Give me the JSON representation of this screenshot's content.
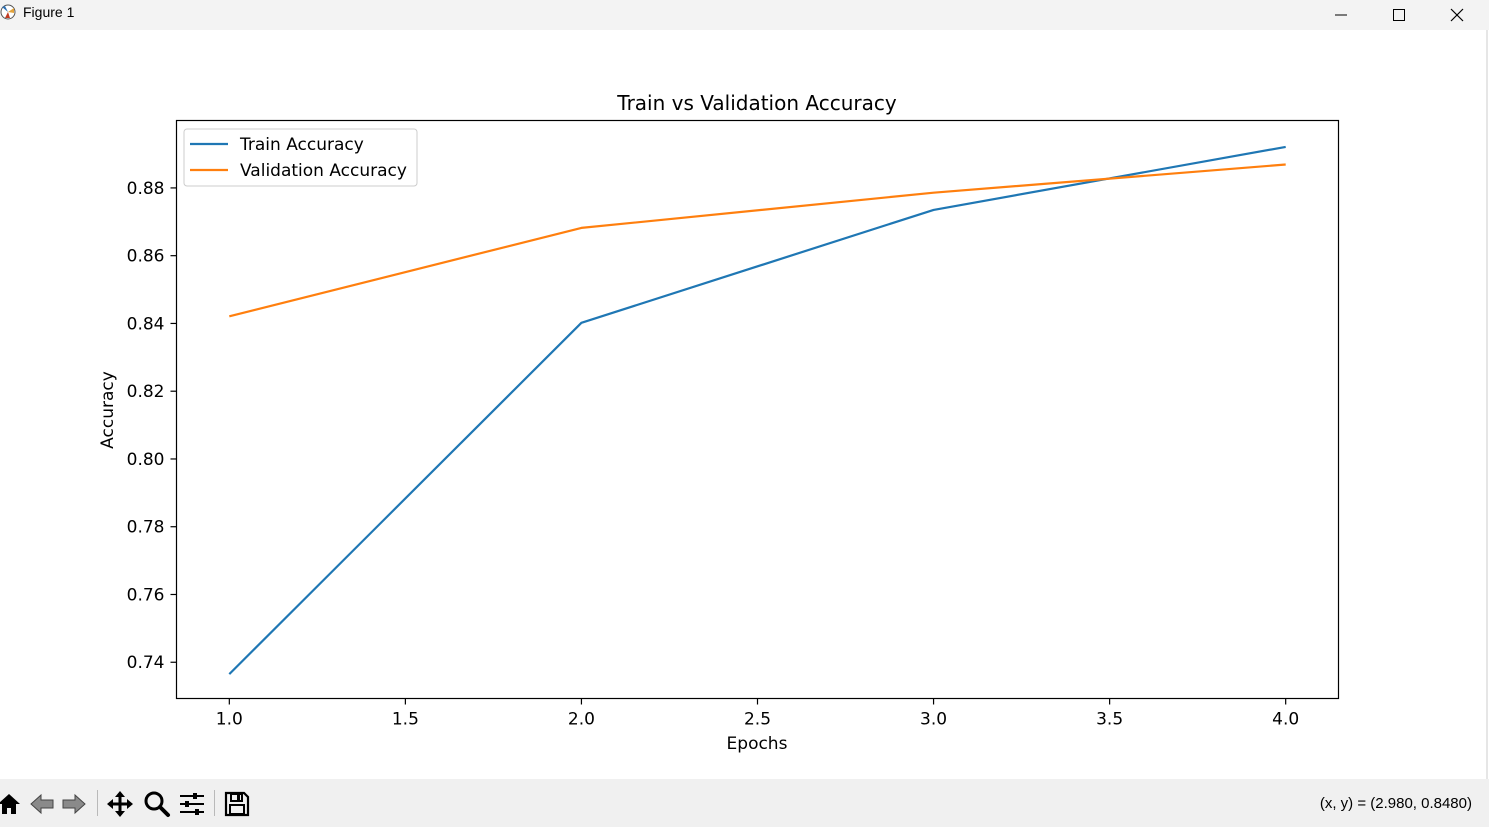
{
  "window": {
    "title": "Figure 1"
  },
  "chart_data": {
    "type": "line",
    "title": "Train vs Validation Accuracy",
    "xlabel": "Epochs",
    "ylabel": "Accuracy",
    "x": [
      1,
      2,
      3,
      4
    ],
    "series": [
      {
        "name": "Train Accuracy",
        "values": [
          0.7365,
          0.8402,
          0.8735,
          0.8921
        ],
        "color": "#1f77b4"
      },
      {
        "name": "Validation Accuracy",
        "values": [
          0.8421,
          0.8682,
          0.8786,
          0.8869
        ],
        "color": "#ff7f0e"
      }
    ],
    "xlim": [
      0.85,
      4.15
    ],
    "ylim": [
      0.7293,
      0.8999
    ],
    "xticks": [
      "1.0",
      "1.5",
      "2.0",
      "2.5",
      "3.0",
      "3.5",
      "4.0"
    ],
    "xtick_values": [
      1.0,
      1.5,
      2.0,
      2.5,
      3.0,
      3.5,
      4.0
    ],
    "yticks": [
      "0.74",
      "0.76",
      "0.78",
      "0.80",
      "0.82",
      "0.84",
      "0.86",
      "0.88"
    ],
    "ytick_values": [
      0.74,
      0.76,
      0.78,
      0.8,
      0.82,
      0.84,
      0.86,
      0.88
    ],
    "grid": false,
    "legend_position": "upper-left"
  },
  "toolbar": {
    "icons": [
      "home-icon",
      "back-icon",
      "forward-icon",
      "pan-icon",
      "zoom-icon",
      "configure-subplots-icon",
      "save-icon"
    ],
    "coordinates": "(x, y) = (2.980, 0.8480)"
  }
}
